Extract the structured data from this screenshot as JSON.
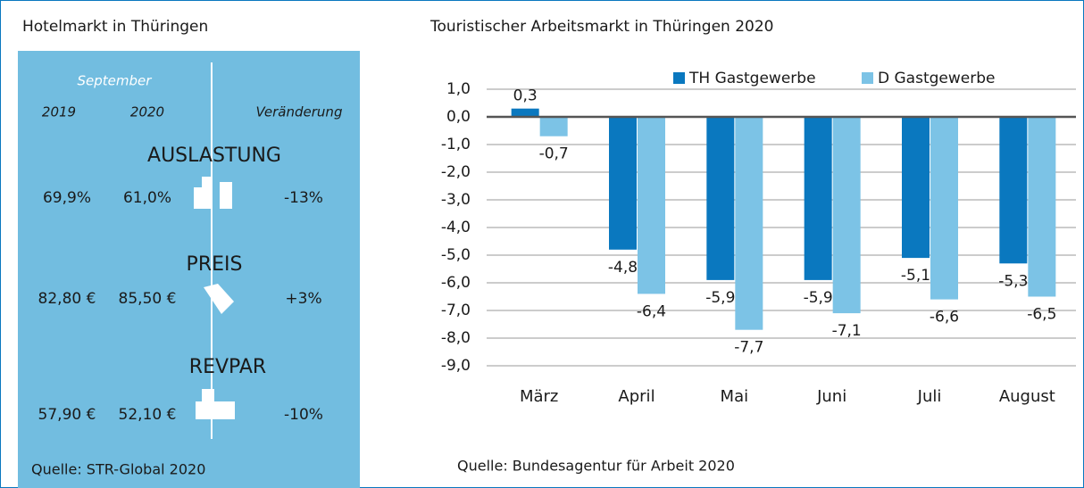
{
  "panel": {
    "title": "Hotelmarkt in Thüringen",
    "month": "September",
    "years": [
      "2019",
      "2020"
    ],
    "change": "Veränderung",
    "metrics": [
      {
        "name": "AUSLASTUNG",
        "v2019": "69,9%",
        "v2020": "61,0%",
        "change": "-13%"
      },
      {
        "name": "PREIS",
        "v2019": "82,80 €",
        "v2020": "85,50 €",
        "change": "+3%"
      },
      {
        "name": "REVPAR",
        "v2019": "57,90 €",
        "v2020": "52,10 €",
        "change": "-10%"
      }
    ],
    "source": "Quelle: STR-Global 2020"
  },
  "chart_data": {
    "type": "bar",
    "title": "Touristischer Arbeitsmarkt in Thüringen 2020",
    "categories": [
      "März",
      "April",
      "Mai",
      "Juni",
      "Juli",
      "August"
    ],
    "series": [
      {
        "name": "TH Gastgewerbe",
        "color": "#0a78bf",
        "values": [
          0.3,
          -4.8,
          -5.9,
          -5.9,
          -5.1,
          -5.3
        ],
        "value_labels": [
          "0,3",
          "-4,8",
          "-5,9",
          "-5,9",
          "-5,1",
          "-5,3"
        ]
      },
      {
        "name": "D Gastgewerbe",
        "color": "#7cc3e6",
        "values": [
          -0.7,
          -6.4,
          -7.7,
          -7.1,
          -6.6,
          -6.5
        ],
        "value_labels": [
          "-0,7",
          "-6,4",
          "-7,7",
          "-7,1",
          "-6,6",
          "-6,5"
        ]
      }
    ],
    "ylim": [
      -9,
      1
    ],
    "yticks": [
      {
        "value": 1,
        "label": "1,0"
      },
      {
        "value": 0,
        "label": "0,0"
      },
      {
        "value": -1,
        "label": "-1,0"
      },
      {
        "value": -2,
        "label": "-2,0"
      },
      {
        "value": -3,
        "label": "-3,0"
      },
      {
        "value": -4,
        "label": "-4,0"
      },
      {
        "value": -5,
        "label": "-5,0"
      },
      {
        "value": -6,
        "label": "-6,0"
      },
      {
        "value": -7,
        "label": "-7,0"
      },
      {
        "value": -8,
        "label": "-8,0"
      },
      {
        "value": -9,
        "label": "-9,0"
      }
    ],
    "grid": true,
    "legend": "top",
    "source": "Quelle: Bundesagentur für Arbeit 2020"
  }
}
